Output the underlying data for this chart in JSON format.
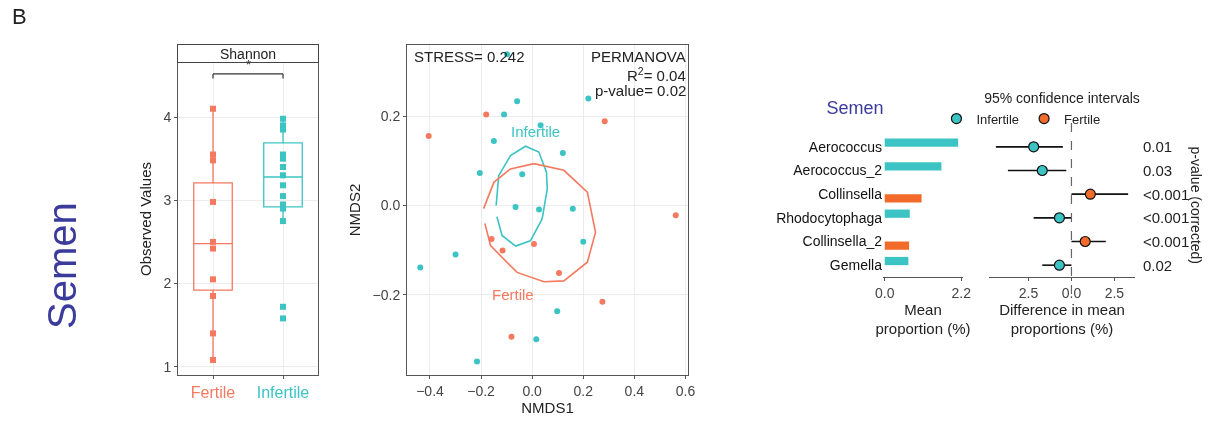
{
  "chart_data": [
    {
      "type": "box",
      "title": "Shannon",
      "ylabel": "Observed Values",
      "categories": [
        "Fertile",
        "Infertile"
      ],
      "ylim": [
        0.9,
        4.65
      ],
      "yticks": [
        1,
        2,
        3,
        4
      ],
      "grid": true,
      "marker": "square",
      "annotations": [
        "*",
        "Semen",
        "B"
      ],
      "series": [
        {
          "type": "box",
          "color": "#f4795f",
          "boxes": [
            {
              "low": 1.08,
              "q1": 1.92,
              "median": 2.48,
              "q3": 3.21,
              "high": 4.1
            },
            null
          ]
        },
        {
          "type": "box",
          "color": "#3cc3c3",
          "boxes": [
            null,
            {
              "low": 2.75,
              "q1": 2.92,
              "median": 3.28,
              "q3": 3.69,
              "high": 3.98
            }
          ]
        },
        {
          "type": "scatter",
          "color": "#f4795f",
          "x": [
            "Fertile",
            "Fertile",
            "Fertile",
            "Fertile",
            "Fertile",
            "Fertile",
            "Fertile",
            "Fertile",
            "Fertile",
            "Fertile"
          ],
          "values": [
            4.1,
            3.55,
            3.48,
            2.98,
            2.5,
            2.42,
            2.05,
            1.85,
            1.4,
            1.08
          ]
        },
        {
          "type": "scatter",
          "color": "#3cc3c3",
          "x": [
            "Infertile",
            "Infertile",
            "Infertile",
            "Infertile",
            "Infertile",
            "Infertile",
            "Infertile",
            "Infertile",
            "Infertile",
            "Infertile",
            "Infertile",
            "Infertile",
            "Infertile",
            "Infertile"
          ],
          "values": [
            3.98,
            3.9,
            3.85,
            3.55,
            3.5,
            3.4,
            3.3,
            3.18,
            3.05,
            2.95,
            2.9,
            2.75,
            1.72,
            1.58
          ]
        }
      ]
    },
    {
      "type": "scatter",
      "xlabel": "NMDS1",
      "ylabel": "NMDS2",
      "annotations": [
        "STRESS= 0.242",
        "PERMANOVA",
        "R$^{2}$= 0.04",
        "p-value= 0.02"
      ],
      "xlim": [
        -0.49,
        0.61
      ],
      "ylim": [
        -0.38,
        0.36
      ],
      "xticks": [
        {
          "value": -0.4,
          "label": "−0.4"
        },
        {
          "value": -0.2,
          "label": "−0.2"
        },
        {
          "value": 0,
          "label": "0.0"
        },
        0.2,
        0.4,
        0.6
      ],
      "yticks": [
        {
          "value": -0.2,
          "label": "−0.2"
        },
        {
          "value": 0,
          "label": "0.0"
        },
        0.2
      ],
      "grid": true,
      "marker": "circle",
      "series": [
        {
          "color": "#f4795f",
          "x": [
            -0.18,
            -0.405,
            0.284,
            0.562,
            -0.159,
            -0.116,
            0.007,
            0.105,
            0.275,
            -0.081
          ],
          "values": [
            0.204,
            0.156,
            0.189,
            -0.022,
            -0.075,
            -0.101,
            -0.086,
            -0.151,
            -0.216,
            -0.294
          ]
        },
        {
          "color": "#3cc3c3",
          "x": [
            -0.098,
            -0.059,
            0.22,
            -0.11,
            0.033,
            -0.15,
            0.12,
            -0.205,
            -0.039,
            -0.065,
            0.027,
            0.159,
            0.2,
            -0.3,
            -0.438,
            0.098,
            0.016,
            -0.216
          ],
          "values": [
            0.339,
            0.234,
            0.24,
            0.204,
            0.18,
            0.145,
            0.118,
            0.073,
            0.07,
            -0.003,
            -0.009,
            -0.007,
            -0.081,
            -0.11,
            -0.139,
            -0.237,
            -0.3,
            -0.35
          ]
        },
        {
          "type": "line",
          "marker": "none",
          "name": "Infertile",
          "color": "#3cc3c3",
          "x": [
            -0.141,
            -0.131,
            -0.085,
            -0.026,
            0.026,
            0.056,
            0.059,
            0.039,
            -0.007,
            -0.065,
            -0.118,
            -0.138
          ],
          "values": [
            0.0,
            0.067,
            0.112,
            0.133,
            0.12,
            0.075,
            0.037,
            -0.03,
            -0.079,
            -0.091,
            -0.067,
            -0.025
          ]
        },
        {
          "type": "line",
          "marker": "none",
          "name": "Fertile",
          "color": "#f4795f",
          "x": [
            -0.19,
            -0.15,
            -0.085,
            0.007,
            0.124,
            0.216,
            0.248,
            0.216,
            0.124,
            0.046,
            -0.059,
            -0.163,
            -0.185
          ],
          "values": [
            -0.007,
            0.052,
            0.082,
            0.094,
            0.079,
            0.03,
            -0.06,
            -0.127,
            -0.169,
            -0.171,
            -0.15,
            -0.09,
            -0.04
          ]
        }
      ]
    },
    {
      "type": "bar",
      "orientation": "horizontal",
      "title": "Semen",
      "xlabel": "Mean proportion (%)",
      "categories": [
        "Aerococcus",
        "Aerococcus_2",
        "Collinsella",
        "Rhodocytophaga",
        "Collinsella_2",
        "Gemella"
      ],
      "xlim": [
        -0.05,
        2.25
      ],
      "xticks": [
        {
          "value": 0,
          "label": "0.0"
        },
        2.2
      ],
      "series": [
        {
          "color": "#3cc3c3",
          "values": [
            2.11,
            1.63,
            null,
            0.72,
            null,
            0.68
          ]
        },
        {
          "color": "#f26b2a",
          "values": [
            null,
            null,
            1.06,
            null,
            0.7,
            null
          ]
        }
      ]
    },
    {
      "type": "scatter",
      "orientation": "horizontal",
      "title": "95% confidence intervals",
      "xlabel": "Difference in mean proportions (%)",
      "y2label": "p-value (corrected)",
      "categories": [
        null,
        null,
        null,
        null,
        null,
        null
      ],
      "y2_categories": [
        "0.01",
        "0.03",
        "<0.001",
        "<0.001",
        "<0.001",
        "0.02"
      ],
      "tick_labels": "x",
      "xlim": [
        -4.8,
        3.7
      ],
      "xticks": [
        {
          "value": -2.5,
          "label": "2.5"
        },
        {
          "value": 0,
          "label": "0.0"
        },
        2.5
      ],
      "legend": "top",
      "marker": "circle",
      "ref_lines": [
        {
          "axis": "x",
          "value": 0,
          "line_style": "dashed",
          "color": "#666666"
        }
      ],
      "series": [
        {
          "name": "Infertile",
          "color": "#3cc3c3",
          "values": [
            -2.2,
            -1.7,
            null,
            -0.7,
            null,
            -0.7
          ],
          "errors": [
            [
              -4.4,
              -0.5
            ],
            [
              -3.7,
              -0.3
            ],
            null,
            [
              -2.2,
              0
            ],
            null,
            [
              -1.7,
              0
            ]
          ]
        },
        {
          "name": "Fertile",
          "color": "#f26b2a",
          "values": [
            null,
            null,
            1.1,
            null,
            0.8,
            null
          ],
          "errors": [
            null,
            null,
            [
              0,
              3.3
            ],
            null,
            [
              0,
              2.0
            ],
            null
          ]
        }
      ]
    }
  ]
}
